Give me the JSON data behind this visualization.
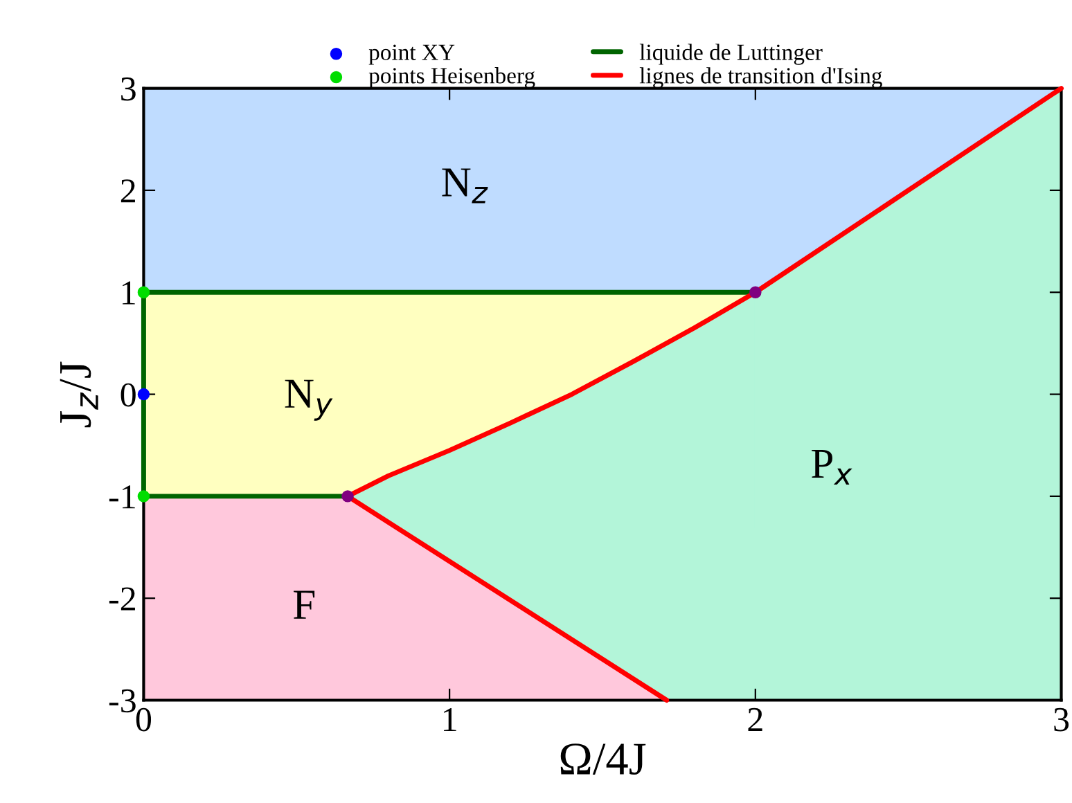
{
  "chart_data": {
    "type": "line",
    "xlabel": "Ω/4J",
    "ylabel": "J$_{z}$/J",
    "xlim": [
      0,
      3
    ],
    "ylim": [
      -3,
      3
    ],
    "xticks": [
      0,
      1,
      2,
      3
    ],
    "yticks": [
      -3,
      -2,
      -1,
      0,
      1,
      2,
      3
    ],
    "legend": "top",
    "series": [
      {
        "type": "scatter",
        "color": "#0000ff",
        "marker": "circle",
        "x": [
          0
        ],
        "values": [
          0
        ],
        "name": "point XY"
      },
      {
        "type": "scatter",
        "color": "#00dd00",
        "marker": "circle",
        "x": [
          0,
          0
        ],
        "values": [
          1,
          -1
        ],
        "name": "points Heisenberg"
      },
      {
        "color": "#006400",
        "x": [
          0,
          2
        ],
        "values": [
          1,
          1
        ],
        "name": "liquide de Luttinger"
      },
      {
        "color": "#006400",
        "x": [
          0,
          0.667
        ],
        "values": [
          -1,
          -1
        ]
      },
      {
        "color": "#006400",
        "x": [
          0,
          0
        ],
        "values": [
          -1,
          1
        ]
      },
      {
        "color": "#ff0000",
        "x": [
          0.667,
          0.8,
          1.0,
          1.2,
          1.4,
          1.6,
          1.8,
          2,
          2.5,
          3
        ],
        "values": [
          -1,
          -0.8,
          -0.55,
          -0.28,
          0,
          0.32,
          0.65,
          1,
          2,
          3
        ],
        "name": "lignes de transition d'Ising"
      },
      {
        "color": "#ff0000",
        "x": [
          0.667,
          1.71
        ],
        "values": [
          -1,
          -3
        ]
      },
      {
        "type": "scatter",
        "color": "#800080",
        "marker": "circle",
        "x": [
          0.667,
          2
        ],
        "values": [
          -1,
          1
        ]
      }
    ],
    "annotations": [
      "N$_{z}$",
      "N$_{y}$",
      "F",
      "P$_{x}$"
    ]
  }
}
